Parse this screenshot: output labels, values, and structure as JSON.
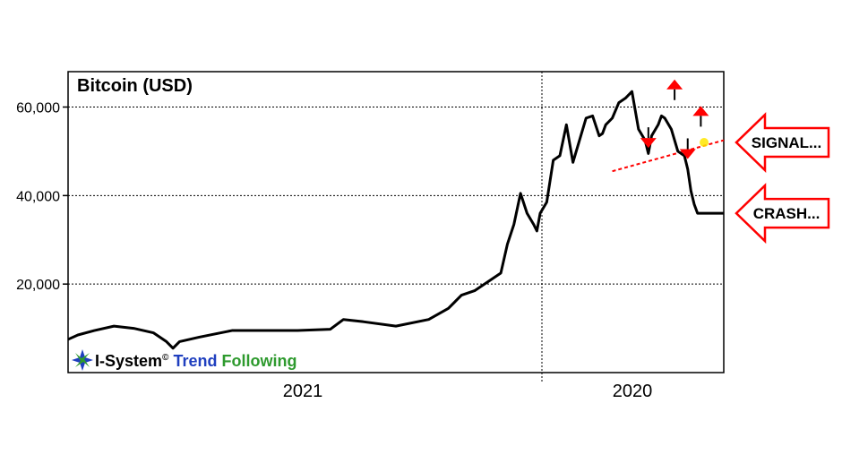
{
  "chart_data": {
    "type": "line",
    "title": "Bitcoin (USD)",
    "xlabel": "",
    "ylabel": "",
    "ylim": [
      0,
      68000
    ],
    "yticks": [
      20000,
      40000,
      60000
    ],
    "ytick_labels": [
      "20,000",
      "40,000",
      "60,000"
    ],
    "xtick_labels": [
      "2021",
      "2020"
    ],
    "grid": true,
    "series": [
      {
        "x": [
          0,
          0.015,
          0.04,
          0.07,
          0.1,
          0.13,
          0.15,
          0.16,
          0.17,
          0.2,
          0.25,
          0.3,
          0.35,
          0.4,
          0.42,
          0.45,
          0.5,
          0.55,
          0.58,
          0.6,
          0.62,
          0.64,
          0.66,
          0.67,
          0.68,
          0.69,
          0.7,
          0.71,
          0.715,
          0.72,
          0.73,
          0.74,
          0.75,
          0.76,
          0.77,
          0.78,
          0.79,
          0.8,
          0.81,
          0.815,
          0.82,
          0.83,
          0.84,
          0.845,
          0.85,
          0.86,
          0.87,
          0.88,
          0.885,
          0.89,
          0.9,
          0.905,
          0.91,
          0.92,
          0.93,
          0.94,
          0.945,
          0.95,
          0.955,
          0.96,
          0.965,
          0.97,
          0.975,
          0.98,
          0.985,
          0.99,
          0.995,
          1.0
        ],
        "values": [
          7500,
          8500,
          9500,
          10500,
          10000,
          9000,
          7000,
          5500,
          7000,
          8000,
          9500,
          9500,
          9500,
          9800,
          12000,
          11500,
          10500,
          12000,
          14500,
          17500,
          18500,
          20500,
          22500,
          29000,
          33500,
          40500,
          36000,
          33500,
          32000,
          36000,
          38500,
          48000,
          49000,
          56000,
          47500,
          52500,
          57500,
          58000,
          53500,
          54000,
          56000,
          57500,
          61000,
          61500,
          62000,
          63500,
          55000,
          52500,
          49500,
          53500,
          56000,
          58000,
          57500,
          55000,
          50000,
          49000,
          46000,
          41000,
          38000,
          36000,
          36000,
          36000,
          36000,
          36000,
          36000,
          36000,
          36000,
          36000
        ]
      }
    ],
    "trendline": {
      "x": [
        0.83,
        1.0
      ],
      "values": [
        45500,
        52500
      ]
    },
    "signal_markers": [
      {
        "direction": "down",
        "x": 0.885,
        "value": 53000
      },
      {
        "direction": "up",
        "x": 0.925,
        "value": 64000
      },
      {
        "direction": "down",
        "x": 0.945,
        "value": 50500
      },
      {
        "direction": "up",
        "x": 0.965,
        "value": 58000
      }
    ],
    "callouts": [
      {
        "text": "SIGNAL...",
        "value": 52000
      },
      {
        "text": "CRASH...",
        "value": 36000
      }
    ],
    "colors": {
      "line": "#000000",
      "trendline": "#ff0000",
      "marker": "#ff0000",
      "callout_border": "#ff0000",
      "grid": "#000000"
    }
  },
  "logo": {
    "brand": "I-System",
    "mark": "©",
    "word1": "Trend",
    "word2": "Following",
    "colors": {
      "brand": "#000000",
      "word1": "#1f3fbf",
      "word2": "#2e9a2e"
    }
  }
}
